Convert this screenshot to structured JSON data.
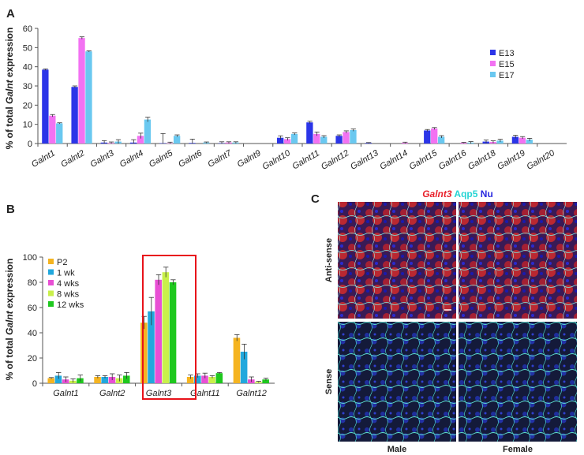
{
  "panels": {
    "A": {
      "letter": "A"
    },
    "B": {
      "letter": "B"
    },
    "C": {
      "letter": "C",
      "title_parts": [
        {
          "text": "Galnt3",
          "color": "#e8202a",
          "italic": true
        },
        {
          "text": " Aqp5",
          "color": "#25d4d4",
          "italic": false
        },
        {
          "text": " Nu",
          "color": "#2a2ae0",
          "italic": false
        }
      ],
      "row_labels": [
        "Anti-sense",
        "Sense"
      ],
      "col_labels": [
        "Male",
        "Female"
      ]
    }
  },
  "colors": {
    "E13": "#2b35e8",
    "E15": "#f272f2",
    "E17": "#6ac8f0",
    "P2": "#f5b420",
    "1 wk": "#21a8dd",
    "4 wks": "#e84fd4",
    "8 wks": "#c9f04a",
    "12 wks": "#1ec81e",
    "highlight": "#e8121a"
  },
  "chart_data": [
    {
      "panel": "A",
      "type": "bar",
      "ylabel": "% of total Galnt expression",
      "ylim": [
        0,
        60
      ],
      "yticks": [
        0,
        10,
        20,
        30,
        40,
        50,
        60
      ],
      "categories": [
        "Galnt1",
        "Galnt2",
        "Galnt3",
        "Galnt4",
        "Galnt5",
        "Galnt6",
        "Galnt7",
        "Galnt9",
        "Galnt10",
        "Galnt11",
        "Galnt12",
        "Galnt13",
        "Galnt14",
        "Galnt15",
        "Galnt16",
        "Galnt18",
        "Galnt19",
        "Galnt20"
      ],
      "series": [
        {
          "name": "E13",
          "values": [
            38.5,
            29.5,
            0.5,
            0.5,
            0.2,
            0.3,
            0.2,
            0.0,
            3.0,
            11.0,
            4.0,
            0.3,
            0.0,
            6.8,
            0.0,
            1.0,
            3.5,
            0.0
          ],
          "errors": [
            0.4,
            0.5,
            1.0,
            1.5,
            5.0,
            2.0,
            0.7,
            0.0,
            1.0,
            0.6,
            0.5,
            0.2,
            0.0,
            0.5,
            0.0,
            0.8,
            0.8,
            0.0
          ]
        },
        {
          "name": "E15",
          "values": [
            14.5,
            55.0,
            0.3,
            4.0,
            0.2,
            0.0,
            0.5,
            0.0,
            2.3,
            5.0,
            6.0,
            0.0,
            0.4,
            7.8,
            0.4,
            0.8,
            3.0,
            0.0
          ],
          "errors": [
            0.6,
            0.6,
            0.5,
            1.4,
            0.5,
            0.0,
            0.4,
            0.0,
            0.7,
            1.0,
            0.6,
            0.0,
            0.3,
            0.5,
            0.2,
            0.6,
            0.6,
            0.0
          ]
        },
        {
          "name": "E17",
          "values": [
            10.5,
            48.0,
            1.0,
            12.5,
            4.0,
            0.5,
            0.5,
            0.0,
            5.0,
            3.5,
            7.0,
            0.0,
            0.0,
            3.5,
            0.5,
            1.5,
            2.0,
            0.0
          ],
          "errors": [
            0.3,
            0.3,
            1.0,
            1.2,
            0.5,
            0.3,
            0.4,
            0.0,
            0.5,
            0.6,
            0.6,
            0.0,
            0.0,
            0.6,
            0.5,
            0.7,
            0.7,
            0.0
          ]
        }
      ],
      "legend": "right"
    },
    {
      "panel": "B",
      "type": "bar",
      "ylabel": "% of total Galnt expression",
      "ylim": [
        0,
        100
      ],
      "yticks": [
        0,
        20,
        40,
        60,
        80,
        100
      ],
      "categories": [
        "Galnt1",
        "Galnt2",
        "Galnt3",
        "Galnt11",
        "Galnt12"
      ],
      "series": [
        {
          "name": "P2",
          "values": [
            4,
            5,
            48,
            5,
            36
          ],
          "errors": [
            0.5,
            1.0,
            5.0,
            1.5,
            2.5
          ]
        },
        {
          "name": "1 wk",
          "values": [
            6,
            5,
            57,
            6,
            25
          ],
          "errors": [
            2.5,
            1.0,
            11.0,
            1.5,
            6.0
          ]
        },
        {
          "name": "4 wks",
          "values": [
            3,
            5,
            82,
            6,
            3
          ],
          "errors": [
            2.0,
            2.5,
            4.0,
            2.0,
            2.0
          ]
        },
        {
          "name": "8 wks",
          "values": [
            2,
            4,
            88,
            5,
            1
          ],
          "errors": [
            1.5,
            2.5,
            4.0,
            1.0,
            0.5
          ]
        },
        {
          "name": "12 wks",
          "values": [
            4,
            6,
            80,
            8,
            3
          ],
          "errors": [
            2.5,
            2.5,
            2.0,
            0.5,
            1.0
          ]
        }
      ],
      "legend": "top-left",
      "highlight_category": "Galnt3"
    }
  ]
}
